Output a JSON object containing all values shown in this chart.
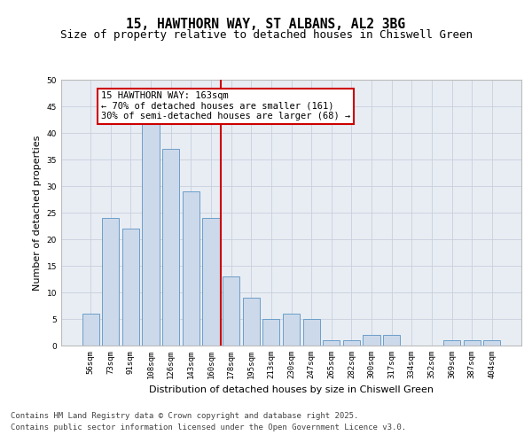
{
  "title1": "15, HAWTHORN WAY, ST ALBANS, AL2 3BG",
  "title2": "Size of property relative to detached houses in Chiswell Green",
  "xlabel": "Distribution of detached houses by size in Chiswell Green",
  "ylabel": "Number of detached properties",
  "categories": [
    "56sqm",
    "73sqm",
    "91sqm",
    "108sqm",
    "126sqm",
    "143sqm",
    "160sqm",
    "178sqm",
    "195sqm",
    "213sqm",
    "230sqm",
    "247sqm",
    "265sqm",
    "282sqm",
    "300sqm",
    "317sqm",
    "334sqm",
    "352sqm",
    "369sqm",
    "387sqm",
    "404sqm"
  ],
  "values": [
    6,
    24,
    22,
    42,
    37,
    29,
    24,
    13,
    9,
    5,
    6,
    5,
    1,
    1,
    2,
    2,
    0,
    0,
    1,
    1,
    1
  ],
  "bar_color": "#ccd9ea",
  "bar_edge_color": "#6b9ec8",
  "vline_x": 6.5,
  "vline_color": "#cc0000",
  "annotation_lines": [
    "15 HAWTHORN WAY: 163sqm",
    "← 70% of detached houses are smaller (161)",
    "30% of semi-detached houses are larger (68) →"
  ],
  "annotation_box_color": "#cc0000",
  "ylim": [
    0,
    50
  ],
  "yticks": [
    0,
    5,
    10,
    15,
    20,
    25,
    30,
    35,
    40,
    45,
    50
  ],
  "grid_color": "#c8d0dc",
  "background_color": "#e8edf4",
  "footer_line1": "Contains HM Land Registry data © Crown copyright and database right 2025.",
  "footer_line2": "Contains public sector information licensed under the Open Government Licence v3.0.",
  "title_fontsize": 10.5,
  "subtitle_fontsize": 9,
  "axis_label_fontsize": 8,
  "tick_fontsize": 6.5,
  "footer_fontsize": 6.5,
  "ann_fontsize": 7.5
}
